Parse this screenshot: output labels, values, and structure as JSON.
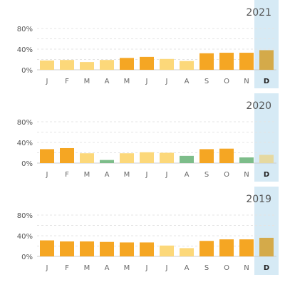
{
  "colors": {
    "strong": "#f5a623",
    "light": "#fcd87a",
    "negative": "#7dbd8a",
    "highlight_band": "#d6eaf5",
    "highlight_bar": "#d4aa4a",
    "highlight_bar_light": "#e6d9a0"
  },
  "chart_data": [
    {
      "type": "bar",
      "title": "2021",
      "categories": [
        "J",
        "F",
        "M",
        "A",
        "M",
        "J",
        "J",
        "A",
        "S",
        "O",
        "N",
        "D"
      ],
      "values": [
        0.18,
        0.19,
        0.15,
        0.19,
        0.23,
        0.25,
        0.21,
        0.17,
        0.32,
        0.33,
        0.33,
        0.38
      ],
      "tones": [
        "light",
        "light",
        "light",
        "light",
        "strong",
        "strong",
        "light",
        "light",
        "strong",
        "strong",
        "strong",
        "strong"
      ],
      "yticks": [
        "80%",
        "40%",
        "0%"
      ],
      "ylim": [
        0,
        0.9
      ],
      "highlighted_category": "D",
      "grid": true
    },
    {
      "type": "bar",
      "title": "2020",
      "categories": [
        "J",
        "F",
        "M",
        "A",
        "M",
        "J",
        "J",
        "A",
        "S",
        "O",
        "N",
        "D"
      ],
      "values": [
        0.27,
        0.29,
        0.19,
        0.06,
        0.19,
        0.21,
        0.2,
        0.14,
        0.27,
        0.28,
        0.11,
        0.16
      ],
      "tones": [
        "strong",
        "strong",
        "light",
        "negative",
        "light",
        "light",
        "light",
        "negative",
        "strong",
        "strong",
        "negative",
        "light"
      ],
      "yticks": [
        "80%",
        "40%",
        "0%"
      ],
      "ylim": [
        0,
        0.9
      ],
      "highlighted_category": "D",
      "grid": true
    },
    {
      "type": "bar",
      "title": "2019",
      "categories": [
        "J",
        "F",
        "M",
        "A",
        "M",
        "J",
        "J",
        "A",
        "S",
        "O",
        "N",
        "D"
      ],
      "values": [
        0.31,
        0.29,
        0.29,
        0.28,
        0.27,
        0.27,
        0.21,
        0.16,
        0.3,
        0.33,
        0.33,
        0.36
      ],
      "tones": [
        "strong",
        "strong",
        "strong",
        "strong",
        "strong",
        "strong",
        "light",
        "light",
        "strong",
        "strong",
        "strong",
        "strong"
      ],
      "yticks": [
        "80%",
        "40%",
        "0%"
      ],
      "ylim": [
        0,
        0.9
      ],
      "highlighted_category": "D",
      "grid": true
    }
  ]
}
